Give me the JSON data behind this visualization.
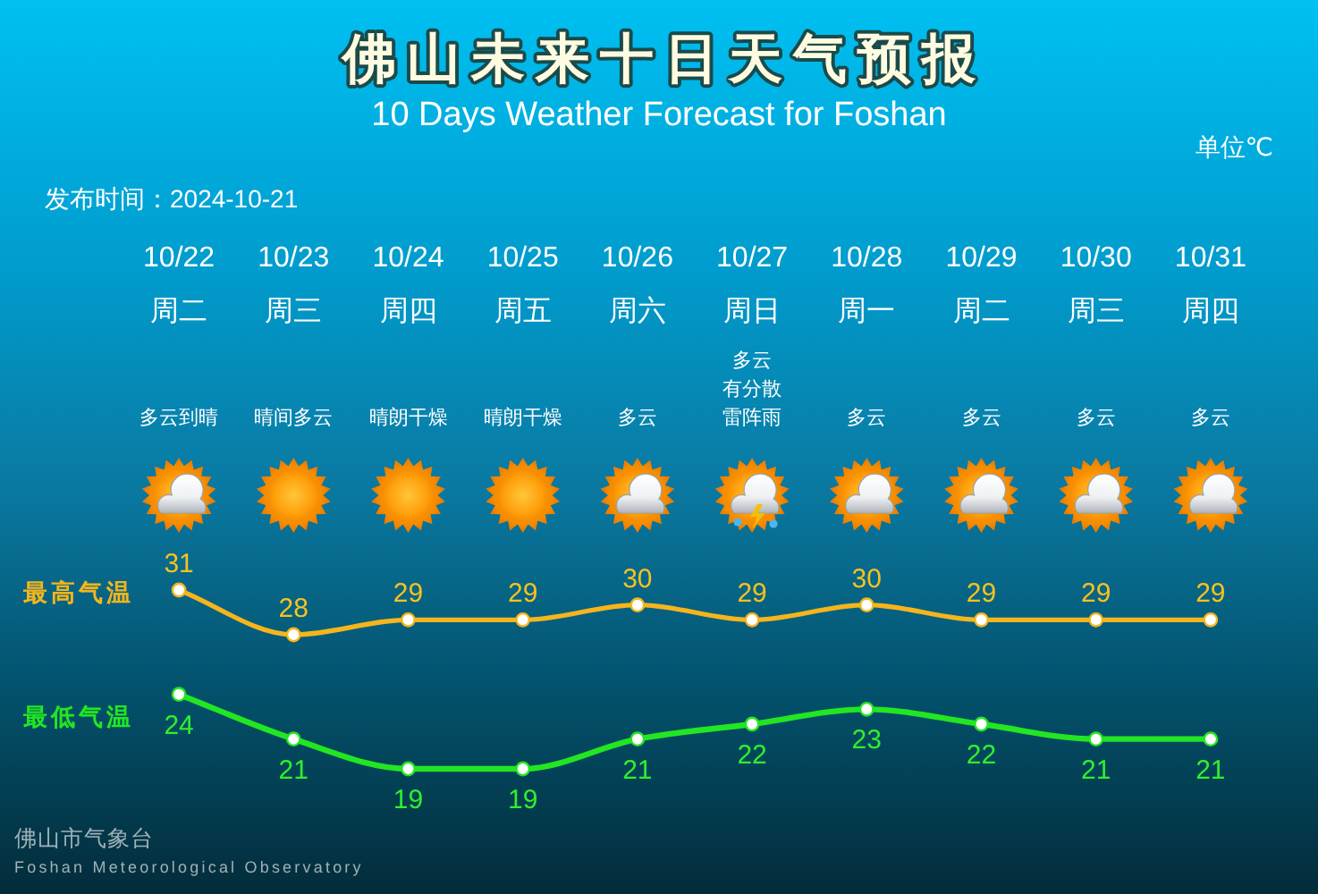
{
  "chart_data": {
    "type": "line",
    "title": "佛山未来十日天气预报",
    "subtitle": "10 Days Weather Forecast for Foshan",
    "categories": [
      "10/22",
      "10/23",
      "10/24",
      "10/25",
      "10/26",
      "10/27",
      "10/28",
      "10/29",
      "10/30",
      "10/31"
    ],
    "series": [
      {
        "name": "最高气温",
        "color": "#f5b51c",
        "values": [
          31,
          28,
          29,
          29,
          30,
          29,
          30,
          29,
          29,
          29
        ]
      },
      {
        "name": "最低气温",
        "color": "#22e622",
        "values": [
          24,
          21,
          19,
          19,
          21,
          22,
          23,
          22,
          21,
          21
        ]
      }
    ],
    "data_labels": true,
    "marker": "circle",
    "line_style": "solid",
    "annotations": [
      "单位℃",
      "发布时间：2024-10-21",
      "佛山市气象台",
      "Foshan Meteorological Observatory",
      "周二",
      "周三",
      "周四",
      "周五",
      "周六",
      "周日",
      "周一",
      "周二",
      "周三",
      "周四",
      "多云到晴",
      "晴间多云",
      "晴朗干燥",
      "晴朗干燥",
      "多云",
      "多云有分散雷阵雨",
      "多云",
      "多云",
      "多云",
      "多云"
    ]
  }
}
